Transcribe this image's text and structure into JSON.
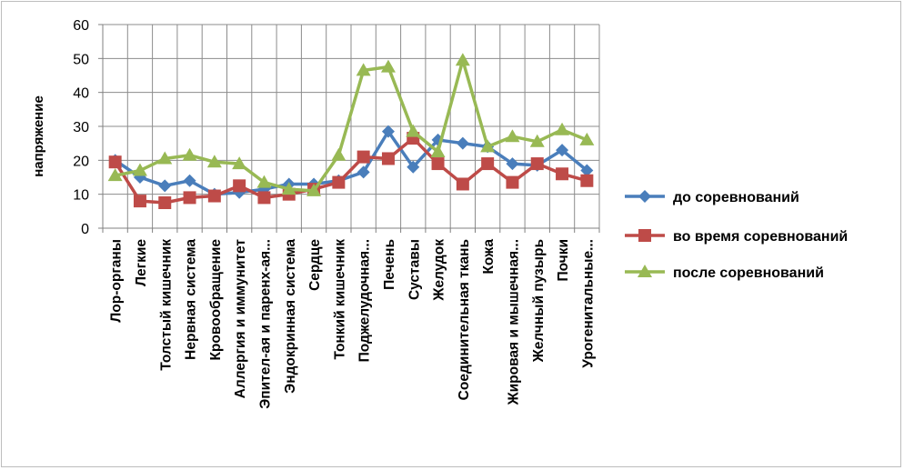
{
  "chart_data": {
    "type": "line",
    "ylabel": "напряжение",
    "ylim": [
      0,
      60
    ],
    "yticks": [
      "0",
      "10",
      "20",
      "30",
      "40",
      "50",
      "60"
    ],
    "grid": true,
    "legend_position": "right",
    "categories": [
      "Лор-органы",
      "Легкие",
      "Толстый кишечник",
      "Нервная система",
      "Кровообращение",
      "Аллергия и иммунитет",
      "Эпител-ая и паренх-ая...",
      "Эндокринная система",
      "Сердце",
      "Тонкий кишечник",
      "Поджелудочная...",
      "Печень",
      "Суставы",
      "Желудок",
      "Соединительная ткань",
      "Кожа",
      "Жировая и мышечная...",
      "Желчный пузырь",
      "Почки",
      "Урогенитальные..."
    ],
    "series": [
      {
        "name": "до соревнований",
        "color": "#4a7ebb",
        "marker": "diamond",
        "values": [
          20,
          15,
          12.5,
          14,
          10,
          10.5,
          11.5,
          13,
          13,
          14,
          16.5,
          28.5,
          18,
          26,
          25,
          24,
          19,
          18.5,
          23,
          17
        ]
      },
      {
        "name": "во время соревнований",
        "color": "#be4b48",
        "marker": "square",
        "values": [
          19.5,
          8,
          7.5,
          9,
          9.5,
          12.5,
          9,
          10,
          11.5,
          13.5,
          21,
          20.5,
          26.5,
          19,
          13,
          19,
          13.5,
          19,
          16,
          14
        ]
      },
      {
        "name": "после соревнований",
        "color": "#98b954",
        "marker": "triangle",
        "values": [
          15.5,
          17,
          20.5,
          21.5,
          19.5,
          19,
          13.5,
          11.5,
          11,
          21.5,
          46.5,
          47.5,
          28.5,
          22.5,
          49.5,
          24,
          27,
          25.5,
          29,
          26
        ]
      }
    ]
  }
}
